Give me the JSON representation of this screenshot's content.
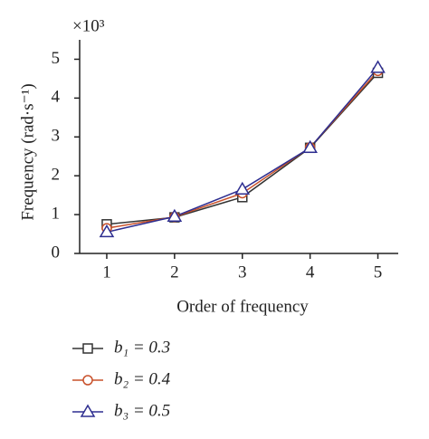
{
  "chart_data": {
    "type": "line",
    "x_label": "Order of frequency",
    "y_label": "Frequency (rad·s⁻¹)",
    "y_multiplier": "×10³",
    "x": [
      1,
      2,
      3,
      4,
      5
    ],
    "xlim": [
      0.6,
      5.3
    ],
    "xticks": [
      1,
      2,
      3,
      4,
      5
    ],
    "ylim": [
      0,
      5.5
    ],
    "yticks": [
      0,
      1,
      2,
      3,
      4,
      5
    ],
    "grid": false,
    "series": [
      {
        "name": "b₁ = 0.3",
        "color": "#333333",
        "marker": "square",
        "values": [
          0.75,
          0.93,
          1.45,
          2.72,
          4.65
        ]
      },
      {
        "name": "b₂ = 0.4",
        "color": "#c8502a",
        "marker": "circle",
        "values": [
          0.65,
          0.94,
          1.55,
          2.73,
          4.7
        ]
      },
      {
        "name": "b₃ = 0.5",
        "color": "#2e2e90",
        "marker": "triangle",
        "values": [
          0.55,
          0.95,
          1.65,
          2.72,
          4.78
        ]
      }
    ]
  }
}
